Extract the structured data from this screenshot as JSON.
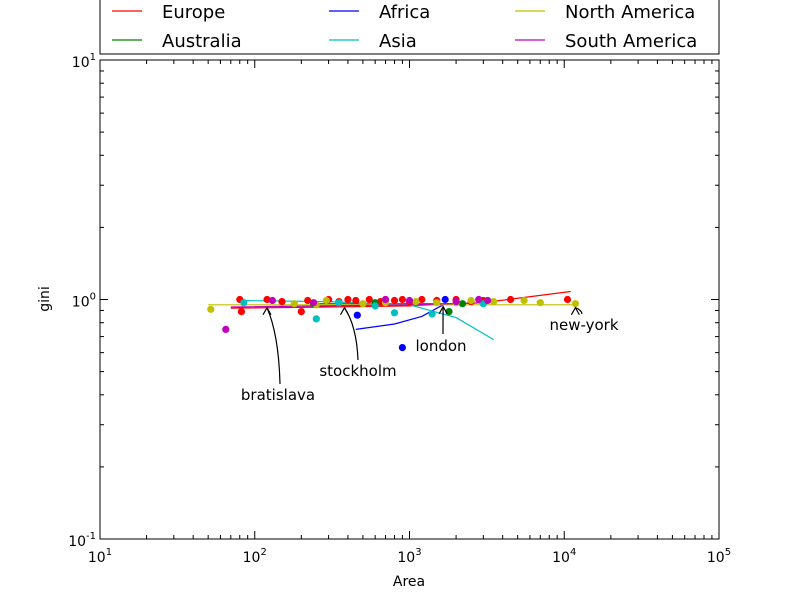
{
  "chart_data": {
    "type": "scatter",
    "xlabel": "Area",
    "ylabel": "gini",
    "x_scale": "log",
    "y_scale": "log",
    "xlim": [
      10,
      100000
    ],
    "ylim": [
      0.1,
      10
    ],
    "x_ticks": [
      {
        "value": 10,
        "base": "10",
        "exp": "1"
      },
      {
        "value": 100,
        "base": "10",
        "exp": "2"
      },
      {
        "value": 1000,
        "base": "10",
        "exp": "3"
      },
      {
        "value": 10000,
        "base": "10",
        "exp": "4"
      },
      {
        "value": 100000,
        "base": "10",
        "exp": "5"
      }
    ],
    "y_ticks": [
      {
        "value": 0.1,
        "base": "10",
        "exp": "-1"
      },
      {
        "value": 1,
        "base": "10",
        "exp": "0"
      },
      {
        "value": 10,
        "base": "10",
        "exp": "1"
      }
    ],
    "legend_position": "top, above plot, 3 columns",
    "series": [
      {
        "name": "Europe",
        "color": "#ff0000",
        "points": [
          [
            80,
            1.0
          ],
          [
            82,
            0.89
          ],
          [
            120,
            1.0
          ],
          [
            150,
            0.98
          ],
          [
            200,
            0.89
          ],
          [
            220,
            0.99
          ],
          [
            300,
            1.0
          ],
          [
            350,
            0.98
          ],
          [
            400,
            1.0
          ],
          [
            450,
            0.99
          ],
          [
            550,
            1.0
          ],
          [
            650,
            0.98
          ],
          [
            700,
            1.0
          ],
          [
            800,
            0.99
          ],
          [
            900,
            1.0
          ],
          [
            1000,
            0.98
          ],
          [
            1200,
            1.0
          ],
          [
            1500,
            0.99
          ],
          [
            2000,
            1.0
          ],
          [
            2500,
            0.98
          ],
          [
            3000,
            0.99
          ],
          [
            4500,
            1.0
          ],
          [
            10500,
            1.0
          ]
        ],
        "fit": [
          [
            70,
            0.92
          ],
          [
            300,
            0.93
          ],
          [
            1000,
            0.94
          ],
          [
            3000,
            0.97
          ],
          [
            11000,
            1.08
          ]
        ]
      },
      {
        "name": "Australia",
        "color": "#008000",
        "points": [
          [
            240,
            0.96
          ],
          [
            600,
            0.97
          ],
          [
            1800,
            0.89
          ],
          [
            2200,
            0.96
          ]
        ],
        "fit": [
          [
            250,
            0.96
          ],
          [
            1000,
            0.96
          ],
          [
            2200,
            0.96
          ]
        ]
      },
      {
        "name": "Africa",
        "color": "#0000ff",
        "points": [
          [
            460,
            0.86
          ],
          [
            900,
            0.63
          ],
          [
            1700,
            1.0
          ]
        ],
        "fit": [
          [
            450,
            0.75
          ],
          [
            800,
            0.79
          ],
          [
            1200,
            0.85
          ],
          [
            1700,
            0.96
          ]
        ]
      },
      {
        "name": "Asia",
        "color": "#00bfbf",
        "points": [
          [
            85,
            0.97
          ],
          [
            250,
            0.83
          ],
          [
            350,
            0.97
          ],
          [
            600,
            0.94
          ],
          [
            800,
            0.88
          ],
          [
            1400,
            0.87
          ],
          [
            2000,
            0.97
          ],
          [
            3000,
            0.96
          ]
        ],
        "fit": [
          [
            80,
            0.99
          ],
          [
            300,
            0.98
          ],
          [
            1000,
            0.95
          ],
          [
            2000,
            0.84
          ],
          [
            3500,
            0.68
          ]
        ]
      },
      {
        "name": "North America",
        "color": "#bfbf00",
        "points": [
          [
            52,
            0.91
          ],
          [
            180,
            0.96
          ],
          [
            250,
            0.95
          ],
          [
            290,
            0.99
          ],
          [
            500,
            0.96
          ],
          [
            700,
            0.97
          ],
          [
            1100,
            0.98
          ],
          [
            1500,
            0.97
          ],
          [
            2000,
            0.97
          ],
          [
            2500,
            0.99
          ],
          [
            3500,
            0.98
          ],
          [
            5500,
            0.99
          ],
          [
            7000,
            0.97
          ],
          [
            11800,
            0.96
          ]
        ],
        "fit": [
          [
            50,
            0.95
          ],
          [
            1000,
            0.95
          ],
          [
            12000,
            0.95
          ]
        ]
      },
      {
        "name": "South America",
        "color": "#bf00bf",
        "points": [
          [
            65,
            0.75
          ],
          [
            130,
            0.99
          ],
          [
            240,
            0.97
          ],
          [
            700,
            1.0
          ],
          [
            1000,
            0.99
          ],
          [
            2000,
            0.98
          ],
          [
            2800,
            1.0
          ],
          [
            3200,
            0.99
          ]
        ],
        "fit": [
          [
            70,
            0.93
          ],
          [
            1000,
            0.95
          ],
          [
            3200,
            0.97
          ]
        ]
      }
    ],
    "annotations": [
      {
        "text": "bratislava",
        "x": 120,
        "y": 0.96
      },
      {
        "text": "stockholm",
        "x": 380,
        "y": 0.96
      },
      {
        "text": "london",
        "x": 1650,
        "y": 0.97
      },
      {
        "text": "new-york",
        "x": 11800,
        "y": 0.96
      }
    ]
  }
}
